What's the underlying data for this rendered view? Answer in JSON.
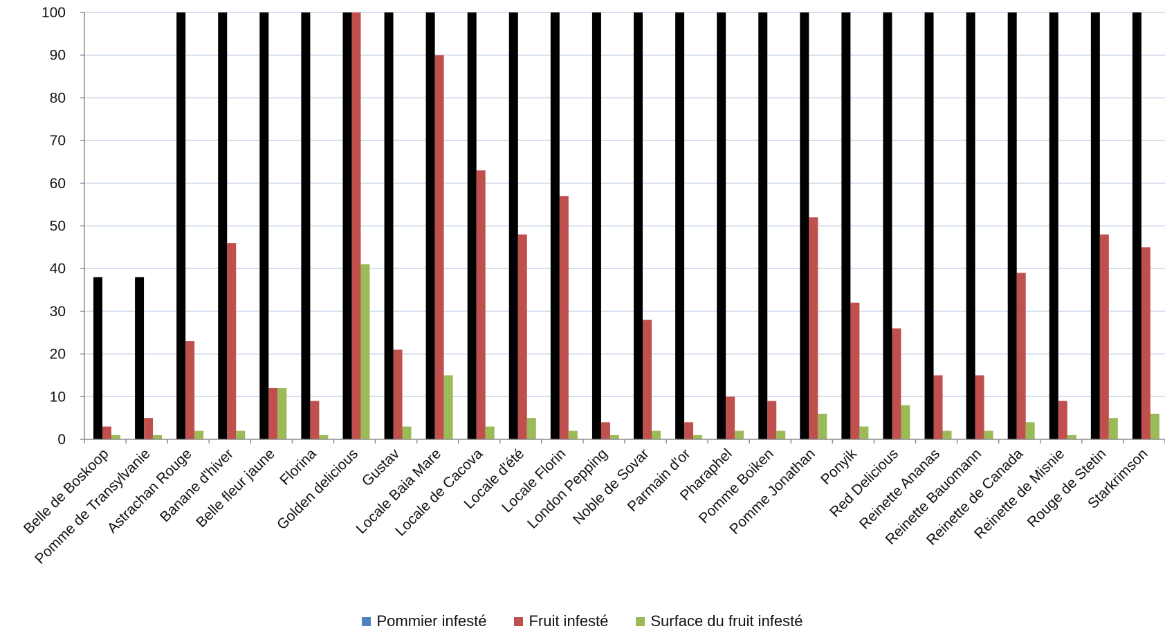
{
  "chart_data": {
    "type": "bar",
    "title": "",
    "xlabel": "",
    "ylabel": "",
    "ylim": [
      0,
      100
    ],
    "yticks": [
      0,
      10,
      20,
      30,
      40,
      50,
      60,
      70,
      80,
      90,
      100
    ],
    "grid": true,
    "legend_position": "bottom",
    "categories": [
      "Belle de Boskoop",
      "Pomme de Transylvanie",
      "Astrachan Rouge",
      "Banane d'hiver",
      "Belle fleur jaune",
      "Florina",
      "Golden delicious",
      "Gustav",
      "Locale Baia Mare",
      "Locale de Cacova",
      "Locale d'été",
      "Locale Florin",
      "London Pepping",
      "Noble de Sovar",
      "Parmain d'or",
      "Pharaphel",
      "Pomme Boiken",
      "Pomme Jonathan",
      "Ponyik",
      "Red Delicious",
      "Reinette Ananas",
      "Reinette Bauomann",
      "Reinette de Canada",
      "Reinette de Misnie",
      "Rouge de Stetin",
      "Starkrimson"
    ],
    "series": [
      {
        "name": "Pommier infesté",
        "legend_color": "#4f81bd",
        "bar_color": "#000000",
        "values": [
          38,
          38,
          100,
          100,
          100,
          100,
          100,
          100,
          100,
          100,
          100,
          100,
          100,
          100,
          100,
          100,
          100,
          100,
          100,
          100,
          100,
          100,
          100,
          100,
          100,
          100
        ]
      },
      {
        "name": "Fruit infesté",
        "legend_color": "#c0504d",
        "bar_color": "#c0504d",
        "values": [
          3,
          5,
          23,
          46,
          12,
          9,
          100,
          21,
          90,
          63,
          48,
          57,
          4,
          28,
          4,
          10,
          9,
          52,
          32,
          26,
          15,
          15,
          39,
          9,
          48,
          45
        ]
      },
      {
        "name": "Surface du fruit infesté",
        "legend_color": "#9bbb59",
        "bar_color": "#9bbb59",
        "values": [
          1,
          1,
          2,
          2,
          12,
          1,
          41,
          3,
          15,
          3,
          5,
          2,
          1,
          2,
          1,
          2,
          2,
          6,
          3,
          8,
          2,
          2,
          4,
          1,
          5,
          6
        ]
      }
    ]
  },
  "colors": {
    "grid": "#c6d4e8",
    "axis": "#8c8c8c"
  }
}
